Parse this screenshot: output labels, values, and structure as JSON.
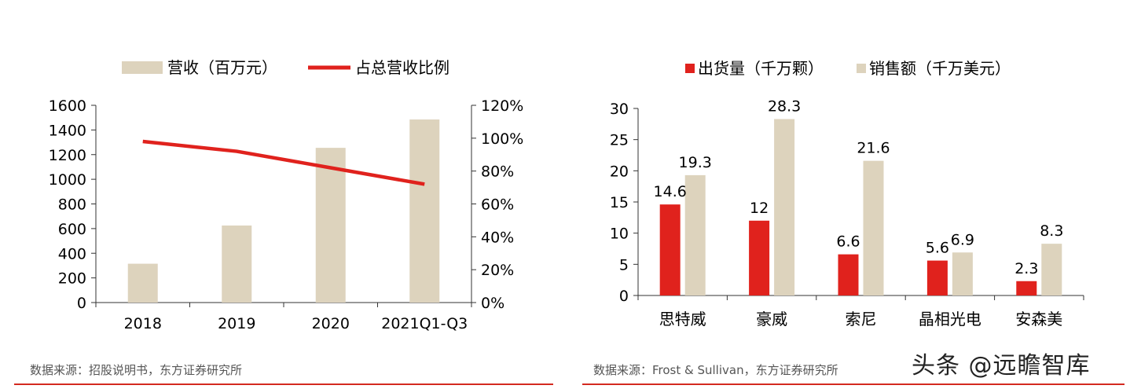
{
  "charts": [
    {
      "source_text": "数据来源：招股说明书，东方证券研究所"
    },
    {
      "source_text": "数据来源：Frost & Sullivan，东方证券研究所"
    }
  ],
  "watermark": "头条 @远瞻智库",
  "colors": {
    "bar_beige": "#ddd3bd",
    "red": "#e0221d",
    "source_line": "#d42a20"
  },
  "chart_data": [
    {
      "type": "bar",
      "categories": [
        "2018",
        "2019",
        "2020",
        "2021Q1-Q3"
      ],
      "series": [
        {
          "name": "营收（百万元）",
          "type": "bar",
          "axis": "left",
          "values": [
            315,
            625,
            1255,
            1485
          ]
        },
        {
          "name": "占总营收比例",
          "type": "line",
          "axis": "right",
          "values": [
            98,
            92,
            82,
            72
          ]
        }
      ],
      "ylim": [
        0,
        1600
      ],
      "yticks": [
        "0",
        "200",
        "400",
        "600",
        "800",
        "1000",
        "1200",
        "1400",
        "1600"
      ],
      "y2lim": [
        0,
        120
      ],
      "y2ticks": [
        "0%",
        "20%",
        "40%",
        "60%",
        "80%",
        "100%",
        "120%"
      ],
      "legend": "top",
      "grid": false
    },
    {
      "type": "bar",
      "categories": [
        "思特威",
        "豪威",
        "索尼",
        "晶相光电",
        "安森美"
      ],
      "series": [
        {
          "name": "出货量（千万颗）",
          "values": [
            14.6,
            12,
            6.6,
            5.6,
            2.3
          ],
          "labels": [
            "14.6",
            "12",
            "6.6",
            "5.6",
            "2.3"
          ]
        },
        {
          "name": "销售额（千万美元）",
          "values": [
            19.3,
            28.3,
            21.6,
            6.9,
            8.3
          ],
          "labels": [
            "19.3",
            "28.3",
            "21.6",
            "6.9",
            "8.3"
          ]
        }
      ],
      "ylim": [
        0,
        30
      ],
      "yticks": [
        "0",
        "5",
        "10",
        "15",
        "20",
        "25",
        "30"
      ],
      "legend": "top",
      "grid": false
    }
  ]
}
